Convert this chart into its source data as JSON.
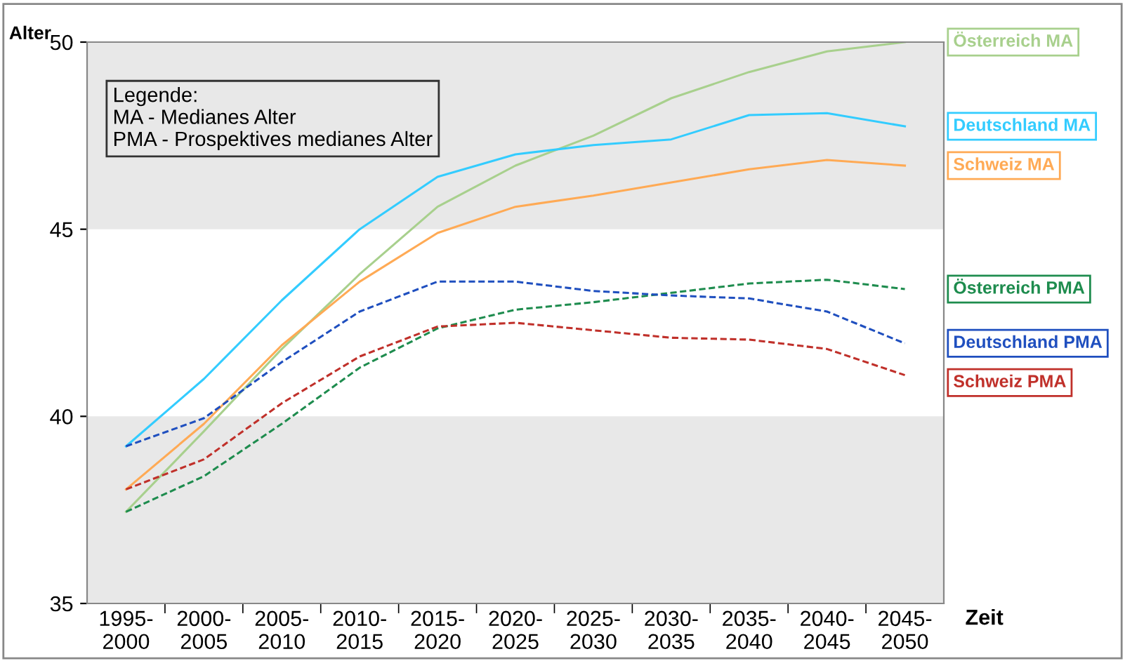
{
  "chart_data": {
    "type": "line",
    "ylabel": "Alter",
    "xlabel": "Zeit",
    "categories": [
      "1995-\n2000",
      "2000-\n2005",
      "2005-\n2010",
      "2010-\n2015",
      "2015-\n2020",
      "2020-\n2025",
      "2025-\n2030",
      "2030-\n2035",
      "2035-\n2040",
      "2040-\n2045",
      "2045-\n2050"
    ],
    "series": [
      {
        "name": "Österreich MA",
        "color": "#a8d08d",
        "line_style": "solid",
        "values": [
          37.45,
          39.6,
          41.8,
          43.8,
          45.6,
          46.7,
          47.5,
          48.5,
          49.2,
          49.75,
          50.0
        ]
      },
      {
        "name": "Deutschland MA",
        "color": "#33ccff",
        "line_style": "solid",
        "values": [
          39.2,
          41.0,
          43.1,
          45.0,
          46.4,
          47.0,
          47.25,
          47.4,
          48.05,
          48.1,
          47.75
        ]
      },
      {
        "name": "Schweiz MA",
        "color": "#ffaa55",
        "line_style": "solid",
        "values": [
          38.05,
          39.8,
          41.9,
          43.6,
          44.9,
          45.6,
          45.9,
          46.25,
          46.6,
          46.85,
          46.7
        ]
      },
      {
        "name": "Österreich PMA",
        "color": "#1e8c4e",
        "line_style": "dashed",
        "values": [
          37.45,
          38.4,
          39.8,
          41.3,
          42.35,
          42.85,
          43.05,
          43.3,
          43.55,
          43.65,
          43.4
        ]
      },
      {
        "name": "Deutschland PMA",
        "color": "#1f4fbf",
        "line_style": "dashed",
        "values": [
          39.2,
          39.95,
          41.45,
          42.8,
          43.6,
          43.6,
          43.35,
          43.23,
          43.15,
          42.8,
          41.95
        ]
      },
      {
        "name": "Schweiz PMA",
        "color": "#c0302a",
        "line_style": "dashed",
        "values": [
          38.05,
          38.85,
          40.35,
          41.6,
          42.4,
          42.5,
          42.3,
          42.1,
          42.05,
          41.8,
          41.1
        ]
      }
    ],
    "ylim": [
      35,
      50
    ],
    "yticks": [
      35,
      40,
      45,
      50
    ],
    "grid": false,
    "legend": false,
    "marker": "none",
    "bands": [
      {
        "axis": "y",
        "from": 35,
        "to": 40,
        "color": "#e8e8e8"
      },
      {
        "axis": "y",
        "from": 45,
        "to": 50,
        "color": "#e8e8e8"
      }
    ],
    "annotations": [
      "Legende:\nMA - Medianes Alter\nPMA - Prospektives medianes Alter"
    ]
  }
}
